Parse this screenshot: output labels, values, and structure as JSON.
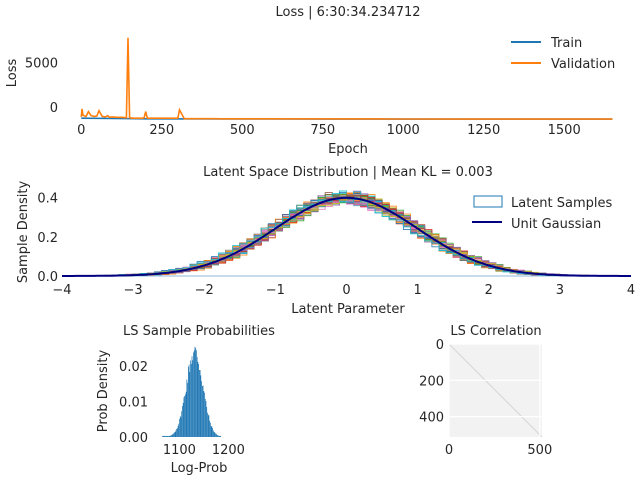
{
  "colors": {
    "train": "#1f77b4",
    "validation": "#ff7f0e",
    "gaussian": "#000080",
    "hist_bar": "#1f77b4",
    "grid": "#ffffff",
    "heatmap_bg": "#f2f2f2",
    "text": "#262626",
    "sample_palette": [
      "#1f77b4",
      "#ff7f0e",
      "#2ca02c",
      "#d62728",
      "#9467bd",
      "#8c564b",
      "#e377c2",
      "#7f7f7f",
      "#bcbd22",
      "#17becf"
    ]
  },
  "chart_data": [
    {
      "id": "loss",
      "type": "line",
      "title": "Loss | 6:30:34.234712",
      "xlabel": "Epoch",
      "ylabel": "Loss",
      "xlim": [
        -60,
        1720
      ],
      "ylim": [
        -1900,
        8900
      ],
      "xticks": [
        0,
        250,
        500,
        750,
        1000,
        1250,
        1500
      ],
      "xtick_labels": [
        "0",
        "250",
        "500",
        "750",
        "1000",
        "1250",
        "1500"
      ],
      "yticks": [
        0,
        5000
      ],
      "ytick_labels": [
        "0",
        "5000"
      ],
      "grid": false,
      "legend": "top-right",
      "series": [
        {
          "name": "Train",
          "x": [
            0,
            200,
            400,
            600,
            800,
            1000,
            1200,
            1400,
            1650
          ],
          "y": [
            -1250,
            -1320,
            -1330,
            -1340,
            -1345,
            -1348,
            -1350,
            -1352,
            -1354
          ]
        },
        {
          "name": "Validation",
          "x": [
            0,
            2,
            5,
            10,
            15,
            22,
            30,
            40,
            48,
            55,
            65,
            75,
            82,
            88,
            95,
            110,
            125,
            140,
            145,
            150,
            160,
            175,
            190,
            195,
            200,
            205,
            220,
            250,
            290,
            300,
            305,
            320,
            360,
            400,
            420,
            430,
            600,
            800,
            1000,
            1200,
            1400,
            1650
          ],
          "y": [
            -1100,
            -200,
            -900,
            -1000,
            -1050,
            -500,
            -950,
            -1050,
            -1000,
            -400,
            -1050,
            -1100,
            -950,
            -1150,
            -1100,
            -1150,
            -1150,
            -1200,
            7800,
            -1200,
            -1250,
            -1250,
            -1250,
            -1200,
            -500,
            -1250,
            -1250,
            -1250,
            -1250,
            -1250,
            -300,
            -1300,
            -1300,
            -1300,
            -1300,
            -1310,
            -1320,
            -1330,
            -1340,
            -1345,
            -1350,
            -1352
          ]
        }
      ]
    },
    {
      "id": "latent",
      "type": "line",
      "title": "Latent Space Distribution | Mean KL = 0.003",
      "xlabel": "Latent Parameter",
      "ylabel": "Sample Density",
      "xlim": [
        -4,
        4
      ],
      "ylim": [
        0,
        0.5
      ],
      "xticks": [
        -4,
        -3,
        -2,
        -1,
        0,
        1,
        2,
        3,
        4
      ],
      "xtick_labels": [
        "−4",
        "−3",
        "−2",
        "−1",
        "0",
        "1",
        "2",
        "3",
        "4"
      ],
      "yticks": [
        0,
        0.2,
        0.4
      ],
      "ytick_labels": [
        "0.0",
        "0.2",
        "0.4"
      ],
      "grid": false,
      "legend": "top-right",
      "legend_entries": [
        "Latent Samples",
        "Unit Gaussian"
      ],
      "latent_sample_histograms": 40,
      "series": [
        {
          "name": "Unit Gaussian",
          "x": [
            -4,
            -3.5,
            -3,
            -2.5,
            -2,
            -1.5,
            -1,
            -0.5,
            0,
            0.5,
            1,
            1.5,
            2,
            2.5,
            3,
            3.5,
            4
          ],
          "y": [
            0.0001,
            0.0009,
            0.0044,
            0.0175,
            0.054,
            0.1295,
            0.242,
            0.3521,
            0.3989,
            0.3521,
            0.242,
            0.1295,
            0.054,
            0.0175,
            0.0044,
            0.0009,
            0.0001
          ]
        }
      ]
    },
    {
      "id": "ls_probs",
      "type": "bar",
      "title": "LS Sample Probabilities",
      "xlabel": "Log-Prob",
      "ylabel": "Prob Density",
      "xlim": [
        1040,
        1240
      ],
      "ylim": [
        0,
        0.026
      ],
      "xticks": [
        1100,
        1200
      ],
      "xtick_labels": [
        "1100",
        "1200"
      ],
      "yticks": [
        0,
        0.01,
        0.02
      ],
      "ytick_labels": [
        "0.00",
        "0.01",
        "0.02"
      ],
      "grid": false,
      "distribution": {
        "mean": 1131,
        "std": 17,
        "min": 1065,
        "max": 1185,
        "peak_density": 0.024
      }
    },
    {
      "id": "ls_corr",
      "type": "heatmap",
      "title": "LS Correlation",
      "xlabel": "",
      "ylabel": "",
      "xlim": [
        0,
        512
      ],
      "ylim": [
        512,
        0
      ],
      "xticks": [
        0,
        500
      ],
      "xtick_labels": [
        "0",
        "500"
      ],
      "yticks": [
        0,
        200,
        400
      ],
      "ytick_labels": [
        "0",
        "200",
        "400"
      ],
      "grid": true,
      "matrix_size": 512,
      "diagonal_value": 1.0,
      "offdiagonal_value": 0.0
    }
  ]
}
